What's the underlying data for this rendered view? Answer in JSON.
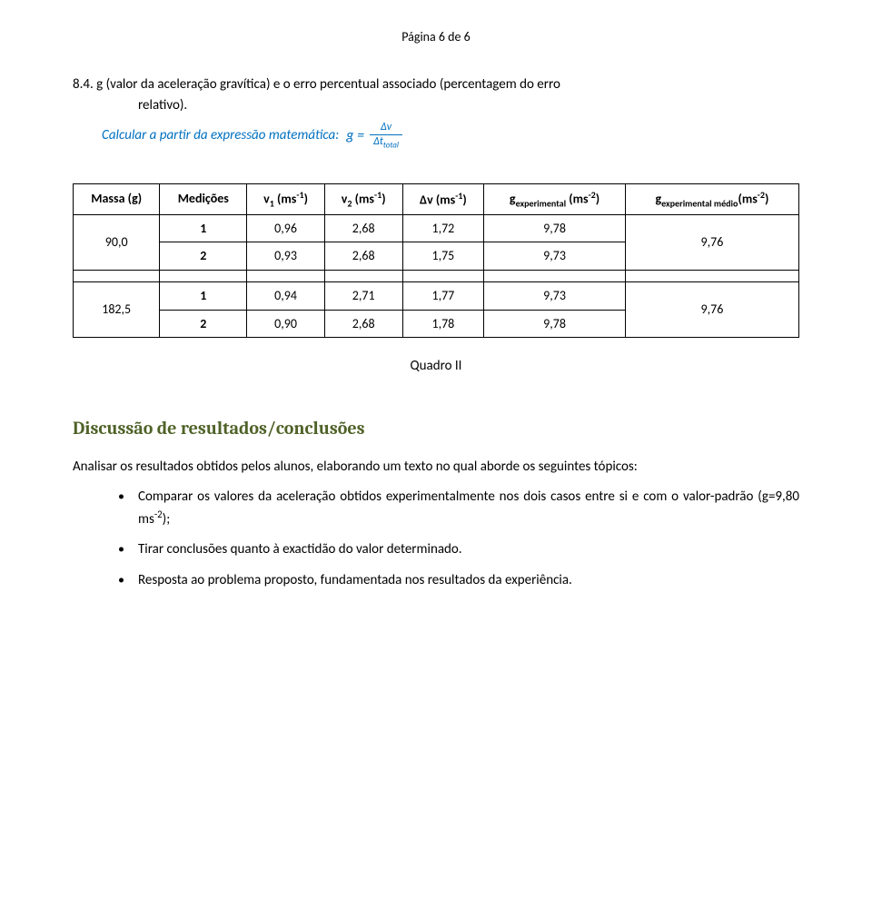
{
  "page_header": "Página 6 de 6",
  "section_8_4_line1": "8.4. g (valor da aceleração gravítica) e o erro percentual associado (percentagem do erro",
  "section_8_4_line2": "relativo).",
  "blue_line_text": "Calcular a partir da expressão matemática:",
  "formula": {
    "lhs": "g  =",
    "num": "Δv",
    "den_prefix": "Δt",
    "den_sub": "total"
  },
  "table": {
    "headers": {
      "massa": "Massa (g)",
      "medicoes": "Medições",
      "gmed": {
        "prefix": "g",
        "sub": "experimental médio",
        "unit": "(ms",
        "sup": "-2",
        "close": ")"
      }
    },
    "col_v1": {
      "prefix": "v",
      "sub": "1",
      "unit": " (ms",
      "sup": "-1",
      "close": ")"
    },
    "col_v2": {
      "prefix": "v",
      "sub": "2",
      "unit": " (ms",
      "sup": "-1",
      "close": ")"
    },
    "col_dv": {
      "prefix": "Δv (ms",
      "sup": "-1",
      "close": ")"
    },
    "col_gexp": {
      "prefix": "g",
      "sub": "experimental",
      "unit": " (ms",
      "sup": "-2",
      "close": ")"
    },
    "groups": [
      {
        "massa": "90,0",
        "gmed": "9,76",
        "rows": [
          {
            "med": "1",
            "v1": "0,96",
            "v2": "2,68",
            "dv": "1,72",
            "g": "9,78"
          },
          {
            "med": "2",
            "v1": "0,93",
            "v2": "2,68",
            "dv": "1,75",
            "g": "9,73"
          }
        ]
      },
      {
        "massa": "182,5",
        "gmed": "9,76",
        "rows": [
          {
            "med": "1",
            "v1": "0,94",
            "v2": "2,71",
            "dv": "1,77",
            "g": "9,73"
          },
          {
            "med": "2",
            "v1": "0,90",
            "v2": "2,68",
            "dv": "1,78",
            "g": "9,78"
          }
        ]
      }
    ]
  },
  "quadro_label": "Quadro II",
  "discussion_heading": "Discussão de resultados/conclusões",
  "discussion_intro_l1": "Analisar os resultados obtidos pelos alunos, elaborando um texto no qual aborde os",
  "discussion_intro_l2": "seguintes tópicos:",
  "bullets": {
    "b1_l1": "Comparar os valores da aceleração obtidos experimentalmente nos dois casos entre",
    "b1_l2_prefix": "si e com o valor-padrão (g=9,80 ms",
    "b1_l2_sup": "-2",
    "b1_l2_suffix": ");",
    "b2": "Tirar conclusões quanto à exactidão do valor determinado.",
    "b3": "Resposta ao problema proposto, fundamentada nos resultados da experiência."
  }
}
